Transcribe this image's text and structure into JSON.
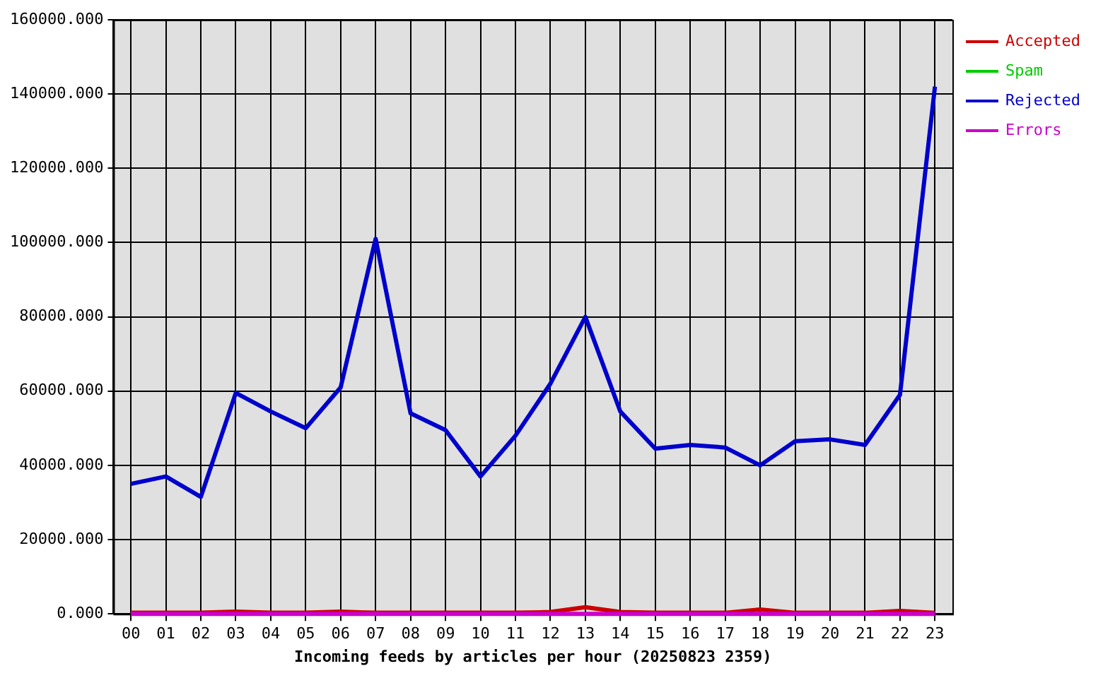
{
  "chart_data": {
    "type": "line",
    "xlabel": "Incoming feeds by articles per hour (20250823 2359)",
    "categories": [
      "00",
      "01",
      "02",
      "03",
      "04",
      "05",
      "06",
      "07",
      "08",
      "09",
      "10",
      "11",
      "12",
      "13",
      "14",
      "15",
      "16",
      "17",
      "18",
      "19",
      "20",
      "21",
      "22",
      "23"
    ],
    "series": [
      {
        "name": "Accepted",
        "color": "#cc0000",
        "values": [
          300,
          300,
          300,
          600,
          300,
          300,
          600,
          300,
          300,
          300,
          300,
          300,
          500,
          1800,
          500,
          300,
          300,
          300,
          1200,
          300,
          300,
          300,
          800,
          300
        ]
      },
      {
        "name": "Spam",
        "color": "#00cc00",
        "values": [
          null,
          null,
          null,
          null,
          null,
          null,
          null,
          null,
          null,
          null,
          null,
          null,
          null,
          null,
          null,
          null,
          null,
          null,
          null,
          null,
          null,
          null,
          null,
          null
        ]
      },
      {
        "name": "Rejected",
        "color": "#0000cc",
        "values": [
          35000,
          37000,
          31500,
          59500,
          54500,
          50000,
          61000,
          101000,
          54000,
          49500,
          37000,
          48000,
          62000,
          80000,
          54500,
          44500,
          45500,
          44800,
          40000,
          46500,
          47000,
          45500,
          59000,
          142000
        ]
      },
      {
        "name": "Errors",
        "color": "#cc00cc",
        "values": [
          0,
          0,
          0,
          0,
          0,
          0,
          0,
          0,
          0,
          0,
          0,
          0,
          0,
          0,
          0,
          0,
          0,
          0,
          0,
          0,
          0,
          0,
          0,
          0
        ]
      }
    ],
    "ylim": [
      0,
      160000
    ],
    "yticks": [
      {
        "value": 0,
        "label": "0.000"
      },
      {
        "value": 20000,
        "label": "20000.000"
      },
      {
        "value": 40000,
        "label": "40000.000"
      },
      {
        "value": 60000,
        "label": "60000.000"
      },
      {
        "value": 80000,
        "label": "80000.000"
      },
      {
        "value": 100000,
        "label": "100000.000"
      },
      {
        "value": 120000,
        "label": "120000.000"
      },
      {
        "value": 140000,
        "label": "140000.000"
      },
      {
        "value": 160000,
        "label": "160000.000"
      }
    ],
    "grid": true,
    "legend": "top right",
    "marker": "none",
    "line_style": "solid"
  }
}
